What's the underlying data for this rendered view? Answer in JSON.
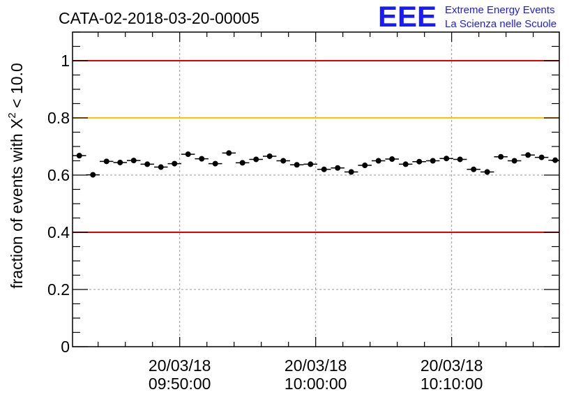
{
  "chart_data": {
    "type": "scatter",
    "title": "CATA-02-2018-03-20-00005",
    "logo": {
      "text": "EEE",
      "line1": "Extreme Energy Events",
      "line2": "La Scienza nelle Scuole",
      "color": "#1a1aff"
    },
    "ylabel_prefix": "fraction of events with ",
    "ylabel_symbol": "X",
    "ylabel_exp": "2",
    "ylabel_suffix": " < 10.0",
    "ylim": [
      0,
      1.1
    ],
    "yticks": [
      {
        "value": 0,
        "label": "0"
      },
      {
        "value": 0.2,
        "label": "0.2"
      },
      {
        "value": 0.4,
        "label": "0.4"
      },
      {
        "value": 0.6,
        "label": "0.6"
      },
      {
        "value": 0.8,
        "label": "0.8"
      },
      {
        "value": 1.0,
        "label": "1"
      }
    ],
    "xlim": [
      "09:42:07",
      "10:17:55"
    ],
    "xticks": [
      {
        "time": "09:50:00",
        "date": "20/03/18",
        "clock": "09:50:00"
      },
      {
        "time": "10:00:00",
        "date": "20/03/18",
        "clock": "10:00:00"
      },
      {
        "time": "10:10:00",
        "date": "20/03/18",
        "clock": "10:10:00"
      }
    ],
    "bin_width_seconds": 60,
    "reference_lines": [
      {
        "value": 1.0,
        "color": "#e00000"
      },
      {
        "value": 0.8,
        "color": "#ffc000"
      },
      {
        "value": 0.4,
        "color": "#e00000"
      }
    ],
    "grid": true,
    "points": [
      {
        "x": "09:42:37",
        "y": 0.668
      },
      {
        "x": "09:43:37",
        "y": 0.601
      },
      {
        "x": "09:44:37",
        "y": 0.648
      },
      {
        "x": "09:45:37",
        "y": 0.644
      },
      {
        "x": "09:46:37",
        "y": 0.651
      },
      {
        "x": "09:47:37",
        "y": 0.638
      },
      {
        "x": "09:48:37",
        "y": 0.628
      },
      {
        "x": "09:49:37",
        "y": 0.64
      },
      {
        "x": "09:50:37",
        "y": 0.673
      },
      {
        "x": "09:51:37",
        "y": 0.657
      },
      {
        "x": "09:52:37",
        "y": 0.64
      },
      {
        "x": "09:53:37",
        "y": 0.677
      },
      {
        "x": "09:54:37",
        "y": 0.643
      },
      {
        "x": "09:55:37",
        "y": 0.655
      },
      {
        "x": "09:56:37",
        "y": 0.666
      },
      {
        "x": "09:57:37",
        "y": 0.65
      },
      {
        "x": "09:58:37",
        "y": 0.636
      },
      {
        "x": "09:59:37",
        "y": 0.638
      },
      {
        "x": "10:00:37",
        "y": 0.62
      },
      {
        "x": "10:01:37",
        "y": 0.625
      },
      {
        "x": "10:02:37",
        "y": 0.611
      },
      {
        "x": "10:03:37",
        "y": 0.634
      },
      {
        "x": "10:04:37",
        "y": 0.65
      },
      {
        "x": "10:05:37",
        "y": 0.656
      },
      {
        "x": "10:06:37",
        "y": 0.638
      },
      {
        "x": "10:07:37",
        "y": 0.647
      },
      {
        "x": "10:08:37",
        "y": 0.65
      },
      {
        "x": "10:09:37",
        "y": 0.658
      },
      {
        "x": "10:10:37",
        "y": 0.655
      },
      {
        "x": "10:11:37",
        "y": 0.62
      },
      {
        "x": "10:12:37",
        "y": 0.611
      },
      {
        "x": "10:13:37",
        "y": 0.664
      },
      {
        "x": "10:14:37",
        "y": 0.65
      },
      {
        "x": "10:15:37",
        "y": 0.67
      },
      {
        "x": "10:16:37",
        "y": 0.662
      },
      {
        "x": "10:17:37",
        "y": 0.652
      }
    ],
    "yerr": 0.009
  }
}
